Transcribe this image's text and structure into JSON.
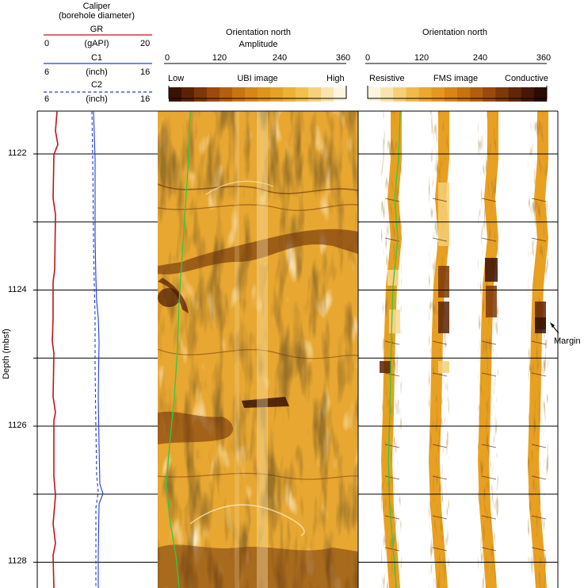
{
  "caliper_header": {
    "title_line1": "Caliper",
    "title_line2": "(borehole diameter)",
    "gr": {
      "name": "GR",
      "min": "0",
      "unit": "(gAPI)",
      "max": "20",
      "color": "#c0141b"
    },
    "c1": {
      "name": "C1",
      "min": "6",
      "unit": "(inch)",
      "max": "16",
      "color": "#1f3fd6"
    },
    "c2": {
      "name": "C2",
      "min": "6",
      "unit": "(inch)",
      "max": "16",
      "color": "#1f3fd6"
    }
  },
  "ubi_header": {
    "title": "Orientation north",
    "subtitle": "Amplitude",
    "ticks": [
      "0",
      "120",
      "240",
      "360"
    ],
    "scale_low": "Low",
    "scale_title": "UBI image",
    "scale_high": "High"
  },
  "fms_header": {
    "title": "Orientation north",
    "ticks": [
      "0",
      "120",
      "240",
      "360"
    ],
    "scale_low": "Resistive",
    "scale_title": "FMS image",
    "scale_high": "Conductive"
  },
  "depth_axis": {
    "label": "Depth (mbsf)",
    "ticks": [
      "1122",
      "1124",
      "1126",
      "1128"
    ]
  },
  "annotation": {
    "text": "Margin"
  },
  "colors": {
    "ubi_scale": [
      "#3a1204",
      "#5c2206",
      "#7d3608",
      "#9b4a0a",
      "#b45f0c",
      "#c8740f",
      "#d68614",
      "#df941a",
      "#e6a323",
      "#ecb232",
      "#f0c24c",
      "#f5d27a",
      "#f9e4ad",
      "#fdf5df"
    ],
    "fms_scale": [
      "#fdf5df",
      "#f9e4ad",
      "#f5cf74",
      "#f0bb4a",
      "#eca72e",
      "#e6971d",
      "#d98514",
      "#c8730f",
      "#b25e0c",
      "#994a0a",
      "#7e3807",
      "#612605",
      "#451704",
      "#2a0c02"
    ],
    "gr_curve": "#c0141b",
    "caliper_curve": "#1f3fd6",
    "orientation_curve": "#27cf3f"
  }
}
